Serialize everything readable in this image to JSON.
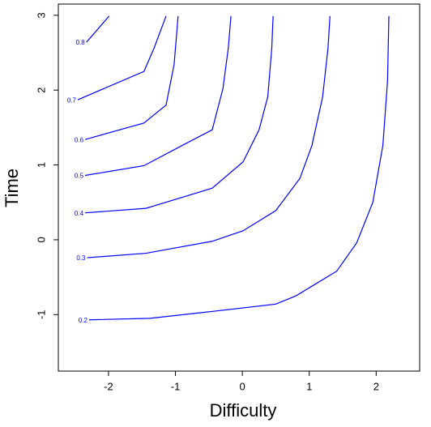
{
  "chart_data": {
    "type": "contour",
    "xlabel": "Difficulty",
    "ylabel": "Time",
    "xlim": [
      -2.75,
      2.65
    ],
    "ylim": [
      -1.755,
      3.15
    ],
    "xticks": [
      -2,
      -1,
      0,
      1,
      2
    ],
    "yticks": [
      -1,
      0,
      1,
      2,
      3
    ],
    "series": [
      {
        "name": "0.2",
        "color": "#0000ff",
        "x": [
          -2.29,
          -1.38,
          -0.47,
          0.5,
          0.8,
          1.41,
          1.71,
          1.95,
          2.1,
          2.17,
          2.19
        ],
        "values": [
          -1.07,
          -1.05,
          -0.96,
          -0.86,
          -0.75,
          -0.42,
          -0.04,
          0.5,
          1.26,
          2.12,
          2.99
        ]
      },
      {
        "name": "0.3",
        "color": "#0000ff",
        "x": [
          -2.32,
          -1.44,
          -0.45,
          0.01,
          0.5,
          0.86,
          1.04,
          1.2,
          1.28,
          1.31
        ],
        "values": [
          -0.24,
          -0.18,
          -0.02,
          0.12,
          0.39,
          0.82,
          1.26,
          1.91,
          2.56,
          2.99
        ]
      },
      {
        "name": "0.4",
        "color": "#0000ff",
        "x": [
          -2.35,
          -1.44,
          -0.45,
          0.01,
          0.25,
          0.38,
          0.44,
          0.46
        ],
        "values": [
          0.36,
          0.42,
          0.69,
          1.04,
          1.47,
          1.91,
          2.56,
          2.99
        ]
      },
      {
        "name": "0.5",
        "color": "#0000ff",
        "x": [
          -2.35,
          -1.47,
          -0.9,
          -0.45,
          -0.29,
          -0.21,
          -0.17
        ],
        "values": [
          0.86,
          0.99,
          1.26,
          1.47,
          2.02,
          2.56,
          2.99
        ]
      },
      {
        "name": "0.6",
        "color": "#0000ff",
        "x": [
          -2.35,
          -1.47,
          -1.14,
          -1.02,
          -0.98,
          -0.96
        ],
        "values": [
          1.34,
          1.56,
          1.8,
          2.34,
          2.77,
          2.99
        ]
      },
      {
        "name": "0.7",
        "color": "#0000ff",
        "x": [
          -2.46,
          -1.47,
          -1.32,
          -1.14
        ],
        "values": [
          1.87,
          2.25,
          2.56,
          2.99
        ]
      },
      {
        "name": "0.8",
        "color": "#0000ff",
        "x": [
          -2.33,
          -1.99
        ],
        "values": [
          2.64,
          2.99
        ]
      }
    ]
  }
}
